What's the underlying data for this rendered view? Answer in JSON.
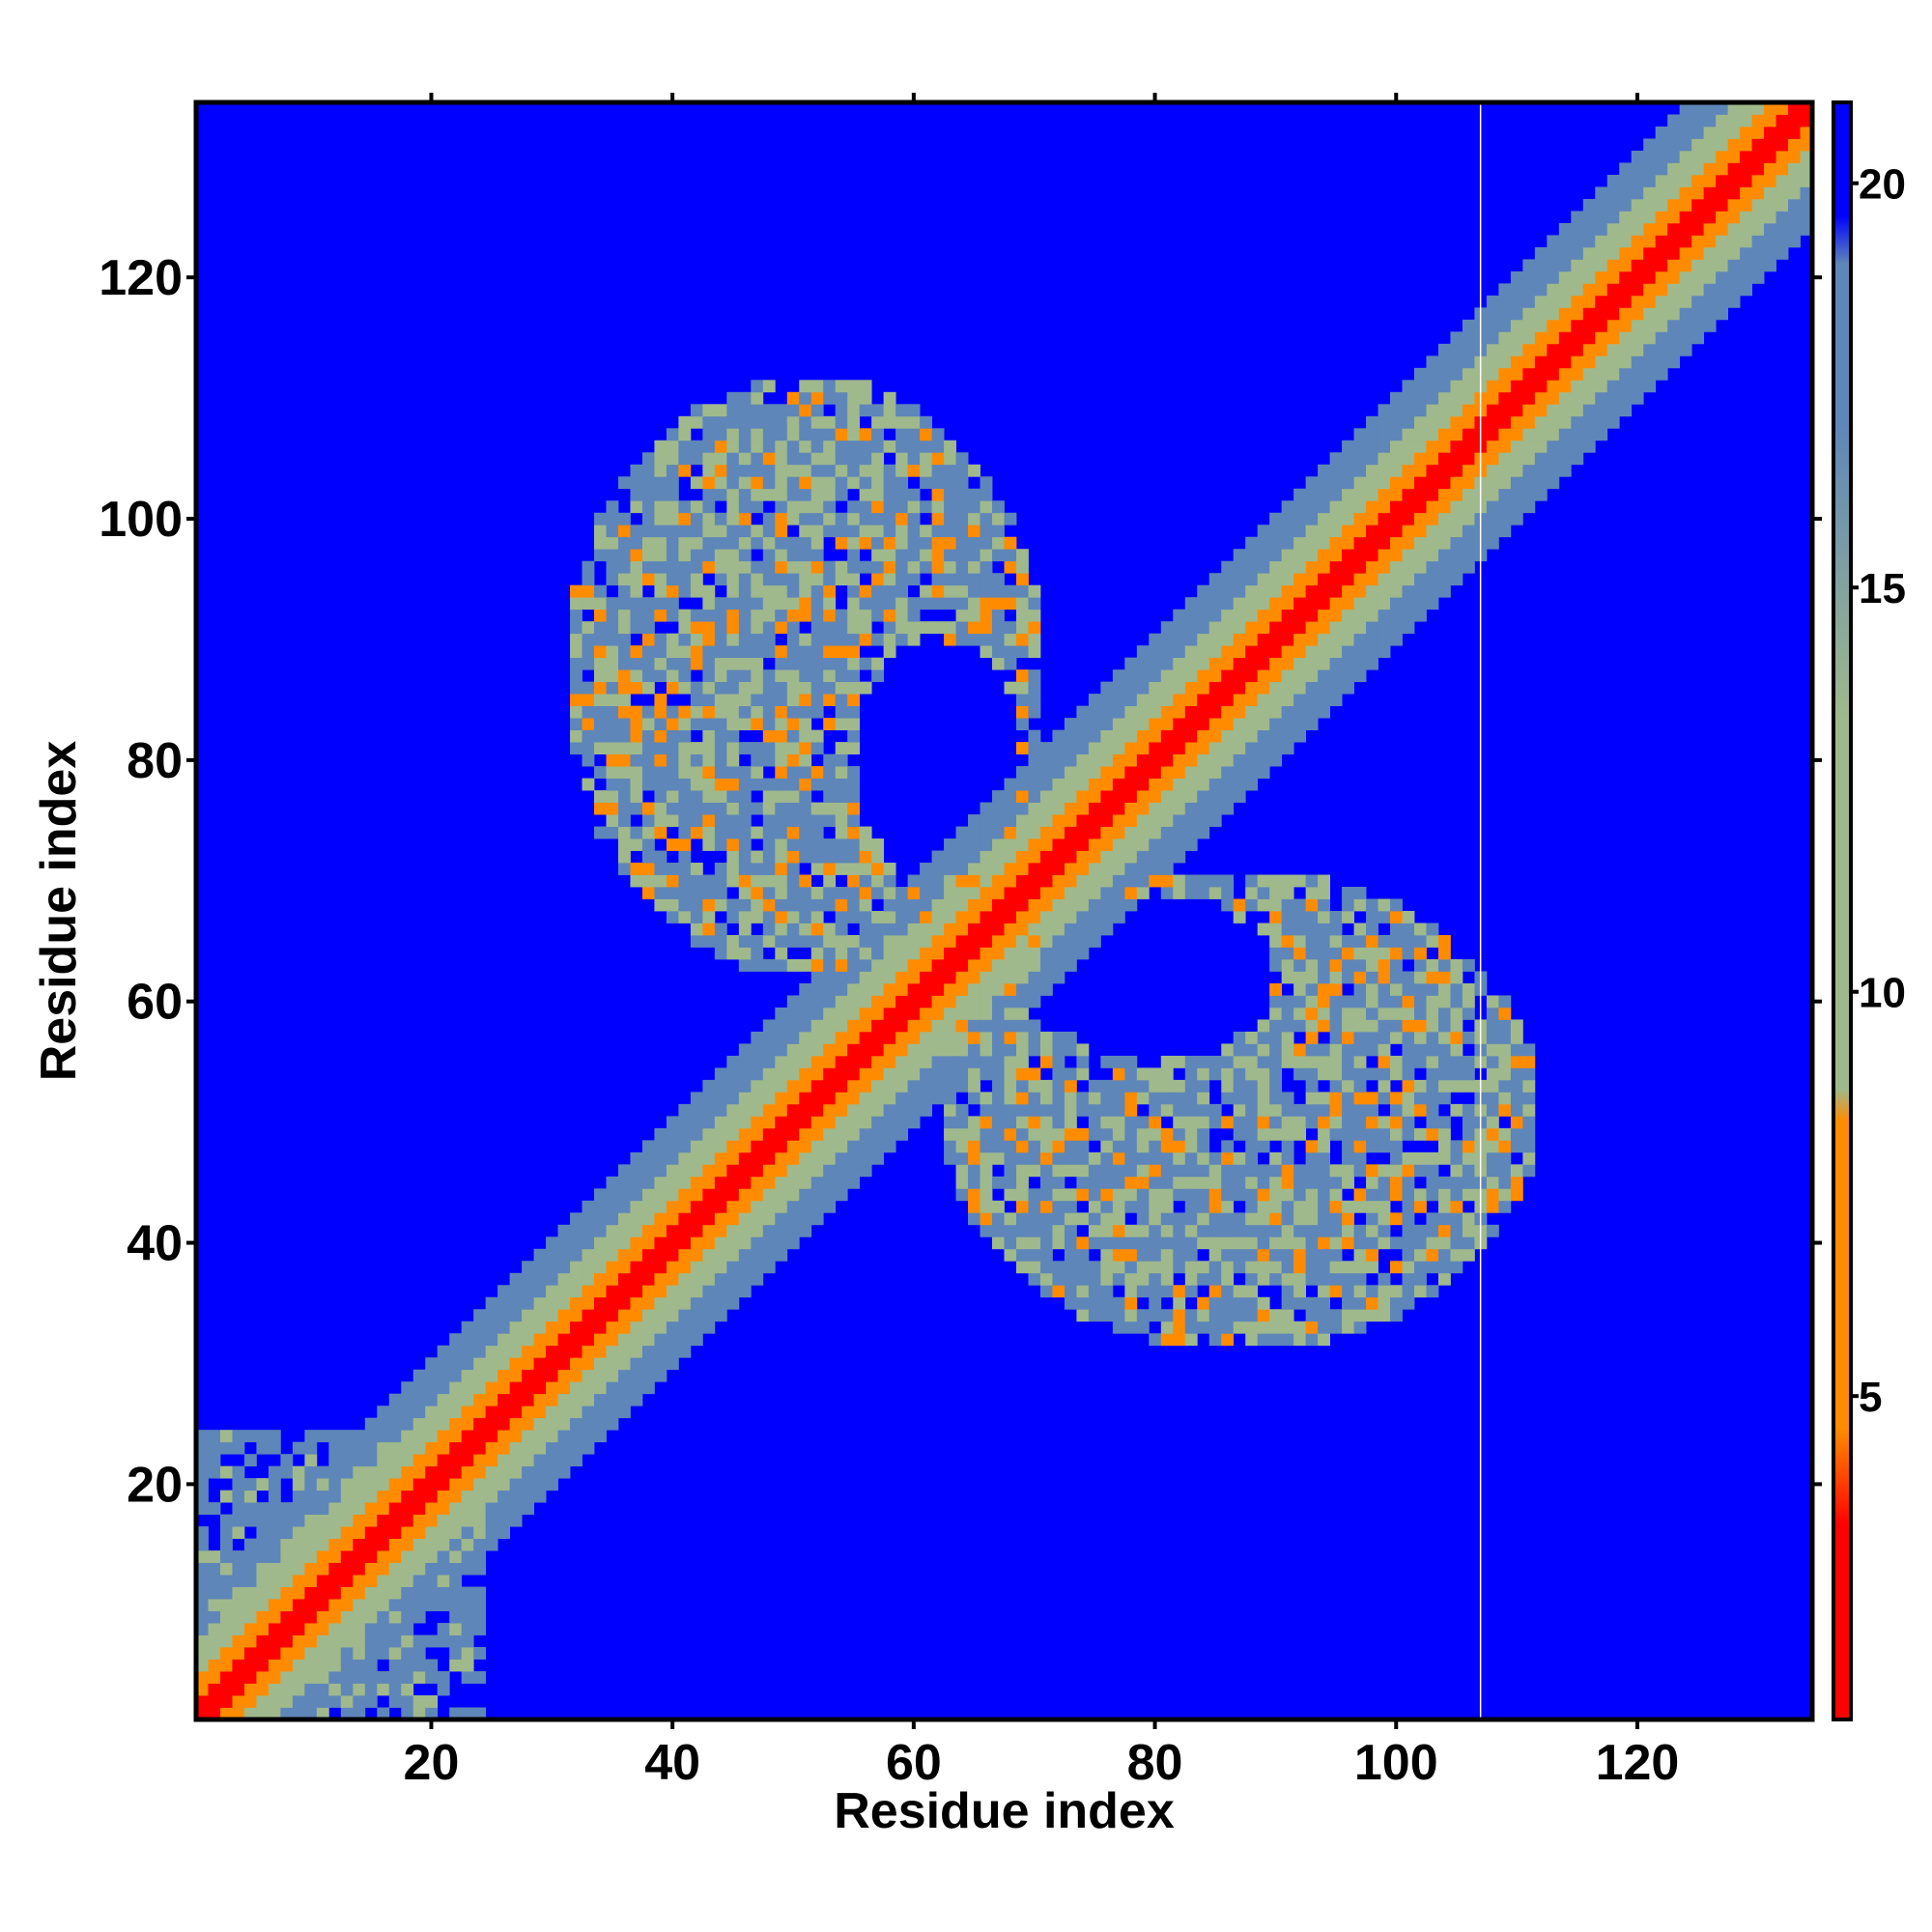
{
  "chart_data": {
    "type": "heatmap",
    "title": "",
    "xlabel": "Residue index",
    "ylabel": "Residue index",
    "xlim": [
      1,
      134
    ],
    "ylim": [
      1,
      134
    ],
    "x_ticks": [
      "20",
      "40",
      "60",
      "80",
      "100",
      "120"
    ],
    "y_ticks": [
      "20",
      "40",
      "60",
      "80",
      "100",
      "120"
    ],
    "x_tick_values": [
      20,
      40,
      60,
      80,
      100,
      120
    ],
    "y_tick_values": [
      20,
      40,
      60,
      80,
      100,
      120
    ],
    "colorbar": {
      "range": [
        1,
        21
      ],
      "ticks": [
        "5",
        "10",
        "15",
        "20"
      ],
      "tick_values": [
        5,
        10,
        15,
        20
      ],
      "colormap": [
        "#ff0000",
        "#ff8c00",
        "#9fb98c",
        "#5f86b8",
        "#0000ff"
      ],
      "cutoff_color": "#0000ff"
    },
    "features": {
      "diagonal_band_width_residues": 3,
      "diagonal_halo_width_residues": 9,
      "contact_lobes": [
        {
          "x_range": [
            32,
            70
          ],
          "y_range": [
            62,
            112
          ],
          "hole_center": [
            62,
            79
          ]
        },
        {
          "x_range": [
            63,
            113
          ],
          "y_range": [
            32,
            70
          ],
          "hole_center": [
            79,
            62
          ]
        }
      ],
      "nterm_contacts": {
        "x_range": [
          1,
          24
        ],
        "y_range": [
          6,
          24
        ]
      },
      "gap_residue": 107
    }
  }
}
